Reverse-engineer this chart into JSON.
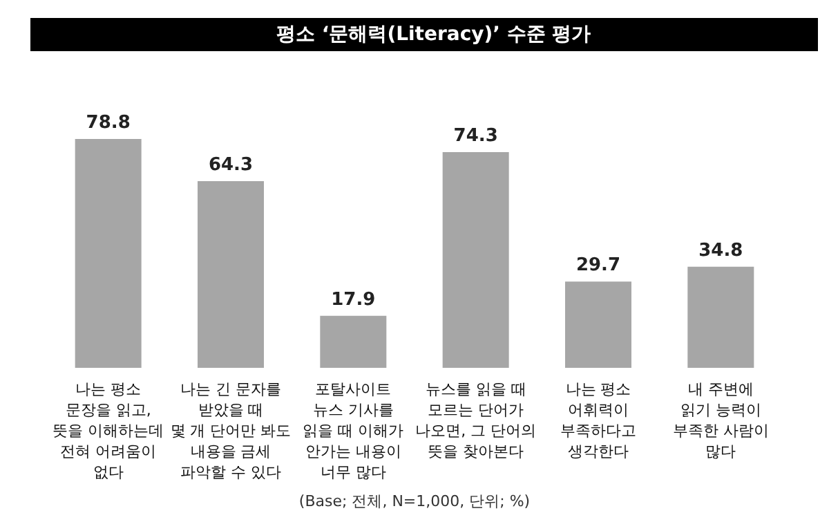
{
  "chart_data": {
    "type": "bar",
    "title": "평소 ‘문해력(Literacy)’ 수준 평가",
    "categories": [
      "나는 평소\n문장을 읽고,\n뜻을 이해하는데\n전혀 어려움이\n없다",
      "나는 긴 문자를\n받았을 때\n몇 개 단어만 봐도\n내용을 금세\n파악할 수 있다",
      "포탈사이트\n뉴스 기사를\n읽을 때 이해가\n안가는 내용이\n너무 많다",
      "뉴스를 읽을 때\n모르는 단어가\n나오면, 그 단어의\n뜻을 찾아본다",
      "나는 평소\n어휘력이\n부족하다고\n생각한다",
      "내 주변에\n읽기 능력이\n부족한 사람이\n많다"
    ],
    "values": [
      78.8,
      64.3,
      17.9,
      74.3,
      29.7,
      34.8
    ],
    "color": "#a6a6a6",
    "data_labels": true,
    "annotations": [
      "(Base; 전체, N=1,000, 단위; %)"
    ]
  }
}
